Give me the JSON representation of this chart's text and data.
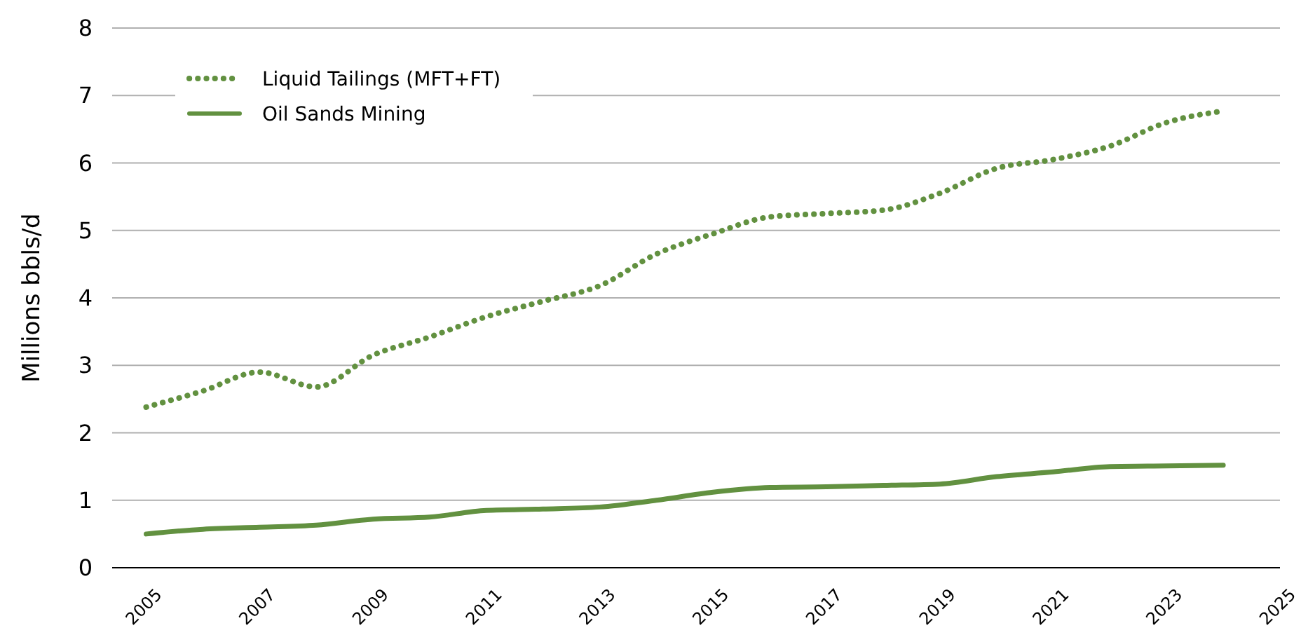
{
  "chart_data": {
    "type": "line",
    "ylabel": "Millions bbls/d",
    "x": [
      2005,
      2006,
      2007,
      2008,
      2009,
      2010,
      2011,
      2012,
      2013,
      2014,
      2015,
      2016,
      2017,
      2018,
      2019,
      2020,
      2021,
      2022,
      2023,
      2024
    ],
    "series": [
      {
        "name": "Liquid Tailings (MFT+FT)",
        "color": "#629140",
        "line_style": "dotted",
        "values": [
          2.38,
          2.62,
          2.9,
          2.68,
          3.15,
          3.42,
          3.72,
          3.95,
          4.18,
          4.65,
          4.95,
          5.2,
          5.25,
          5.3,
          5.55,
          5.92,
          6.05,
          6.25,
          6.6,
          6.77
        ]
      },
      {
        "name": "Oil Sands Mining",
        "color": "#629140",
        "line_style": "solid",
        "values": [
          0.5,
          0.57,
          0.6,
          0.63,
          0.72,
          0.75,
          0.85,
          0.87,
          0.9,
          1.0,
          1.12,
          1.19,
          1.2,
          1.22,
          1.24,
          1.35,
          1.42,
          1.5,
          1.51,
          1.52
        ]
      }
    ],
    "xlim": [
      2004.4,
      2025
    ],
    "xticks": [
      2005,
      2007,
      2009,
      2011,
      2013,
      2015,
      2017,
      2019,
      2021,
      2023,
      2025
    ],
    "ylim": [
      0,
      8
    ],
    "yticks": [
      0,
      1,
      2,
      3,
      4,
      5,
      6,
      7,
      8
    ],
    "grid": "y",
    "legend": "top left"
  }
}
